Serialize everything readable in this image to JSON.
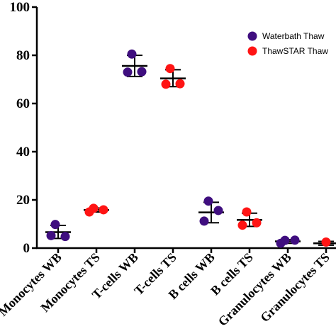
{
  "chart_data": {
    "type": "scatter",
    "title": "",
    "xlabel": "",
    "ylabel": "",
    "ylim": [
      0,
      100
    ],
    "yticks": [
      "0",
      "20",
      "40",
      "60",
      "80",
      "100"
    ],
    "categories": [
      "Monocytes WB",
      "Monocytes TS",
      "T-cells WB",
      "T-cells TS",
      "B cells WB",
      "B cells TS",
      "Granulocytes WB",
      "Granulocytes TS"
    ],
    "legend_position": "top-right",
    "series": [
      {
        "name": "Waterbath Thaw",
        "color": "#3f0e7f"
      },
      {
        "name": "ThawSTAR Thaw",
        "color": "#ff1414"
      }
    ],
    "groups": [
      {
        "category": "Monocytes WB",
        "series": 0,
        "points": [
          9.8,
          5.2,
          4.8
        ],
        "mean": 6.6,
        "sd_low": 4.0,
        "sd_high": 9.4
      },
      {
        "category": "Monocytes TS",
        "series": 1,
        "points": [
          16.5,
          15.0,
          15.9
        ],
        "mean": 15.8,
        "sd_low": 15.0,
        "sd_high": 16.6
      },
      {
        "category": "T-cells WB",
        "series": 0,
        "points": [
          80.5,
          73.0,
          73.2
        ],
        "mean": 75.6,
        "sd_low": 71.2,
        "sd_high": 80.0
      },
      {
        "category": "T-cells TS",
        "series": 1,
        "points": [
          74.5,
          68.0,
          68.2
        ],
        "mean": 70.4,
        "sd_low": 67.0,
        "sd_high": 74.0
      },
      {
        "category": "B cells WB",
        "series": 0,
        "points": [
          19.5,
          11.2,
          15.6
        ],
        "mean": 14.8,
        "sd_low": 10.5,
        "sd_high": 19.0
      },
      {
        "category": "B cells TS",
        "series": 1,
        "points": [
          15.0,
          9.5,
          10.5
        ],
        "mean": 11.7,
        "sd_low": 9.0,
        "sd_high": 14.5
      },
      {
        "category": "Granulocytes WB",
        "series": 0,
        "points": [
          3.2,
          2.0,
          3.3
        ],
        "mean": 2.8,
        "sd_low": 2.0,
        "sd_high": 3.5
      },
      {
        "category": "Granulocytes TS",
        "series": 1,
        "points": [
          2.5
        ],
        "mean": 2.0,
        "sd_low": 1.2,
        "sd_high": 2.8
      }
    ]
  }
}
